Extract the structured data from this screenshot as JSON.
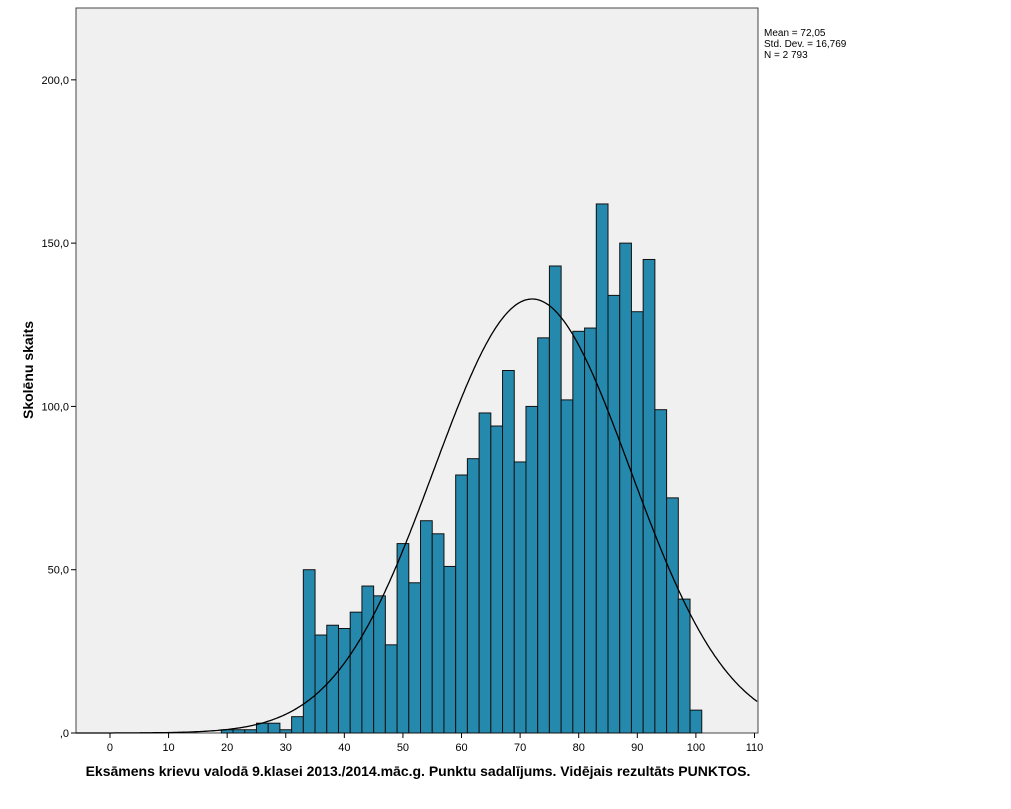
{
  "chart_data": {
    "type": "bar",
    "subtype": "histogram",
    "xlabel": "Eksāmens krievu valodā 9.klasei 2013./2014.māc.g. Punktu sadalījums. Vidējais rezultāts PUNKTOS.",
    "ylabel": "Skolēnu skaits",
    "xlim": [
      -5.8,
      110.6
    ],
    "ylim": [
      0,
      222
    ],
    "x_ticks": [
      0,
      10,
      20,
      30,
      40,
      50,
      60,
      70,
      80,
      90,
      100,
      110
    ],
    "x_tick_labels": [
      "0",
      "10",
      "20",
      "30",
      "40",
      "50",
      "60",
      "70",
      "80",
      "90",
      "100",
      "110"
    ],
    "y_ticks": [
      0,
      50,
      100,
      150,
      200
    ],
    "y_tick_labels": [
      ",0",
      "50,0",
      "100,0",
      "150,0",
      "200,0"
    ],
    "bin_width": 2,
    "bin_centers": [
      20,
      22,
      24,
      26,
      28,
      30,
      32,
      34,
      36,
      38,
      40,
      42,
      44,
      46,
      48,
      50,
      52,
      54,
      56,
      58,
      60,
      62,
      64,
      66,
      68,
      70,
      72,
      74,
      76,
      78,
      80,
      82,
      84,
      86,
      88,
      90,
      92,
      94,
      96,
      98,
      100
    ],
    "values": [
      1,
      1,
      1,
      3,
      3,
      1,
      5,
      50,
      30,
      33,
      32,
      37,
      45,
      42,
      27,
      58,
      46,
      65,
      61,
      51,
      79,
      84,
      98,
      94,
      111,
      83,
      100,
      121,
      143,
      102,
      123,
      124,
      162,
      134,
      150,
      129,
      145,
      99,
      72,
      41,
      7
    ],
    "normal_curve": {
      "mean": 72.05,
      "sd": 16.769,
      "n": 2793
    },
    "stats": [
      "Mean = 72,05",
      "Std. Dev. = 16,769",
      "N = 2 793"
    ],
    "colors": {
      "bar": "#2589ae",
      "plot_bg": "#f0f0f0",
      "curve": "#000000"
    }
  }
}
